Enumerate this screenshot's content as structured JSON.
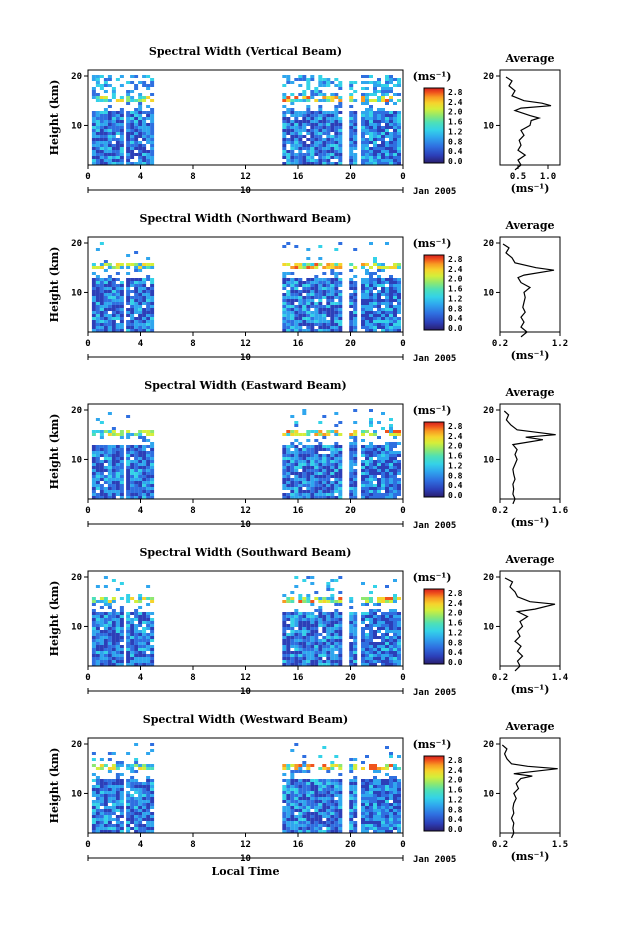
{
  "colors": {
    "axis": "#000000",
    "palette": [
      "#2a1e6e",
      "#2c3fb8",
      "#2f6fe0",
      "#2fa6ee",
      "#34d2e8",
      "#4de0b8",
      "#8ee870",
      "#d4ee3a",
      "#f6d42c",
      "#f89a22",
      "#f0541c",
      "#d61e1e"
    ]
  },
  "chart_data": [
    {
      "type": "heatmap",
      "title": "Spectral Width (Vertical Beam)",
      "ylabel": "Height (km)",
      "xlabel": "",
      "date_label": "Jan 2005",
      "day_label": "10",
      "x_ticks": [
        "0",
        "4",
        "8",
        "12",
        "16",
        "20",
        "0"
      ],
      "y_ticks": [
        "20",
        "10"
      ],
      "colorbar_unit": "(ms⁻¹)",
      "colorbar_ticks": [
        "2.8",
        "2.4",
        "2.0",
        "1.6",
        "1.2",
        "0.8",
        "0.4",
        "0.0"
      ],
      "profile": {
        "title": "Average",
        "xlabel": "(ms⁻¹)",
        "x_ticks": [
          "0.5",
          "1.0"
        ],
        "y_ticks": [
          "20",
          "10"
        ],
        "xlim": [
          0.2,
          1.2
        ],
        "points": [
          [
            0.45,
            1
          ],
          [
            0.55,
            2
          ],
          [
            0.5,
            3
          ],
          [
            0.62,
            4
          ],
          [
            0.5,
            5
          ],
          [
            0.55,
            6
          ],
          [
            0.52,
            7
          ],
          [
            0.6,
            8
          ],
          [
            0.55,
            9
          ],
          [
            0.7,
            10
          ],
          [
            0.72,
            11
          ],
          [
            0.85,
            11.5
          ],
          [
            0.7,
            12
          ],
          [
            0.45,
            13
          ],
          [
            0.55,
            13.5
          ],
          [
            1.05,
            14
          ],
          [
            0.9,
            14.5
          ],
          [
            0.6,
            15
          ],
          [
            0.4,
            16
          ],
          [
            0.45,
            17
          ],
          [
            0.35,
            18
          ],
          [
            0.4,
            19
          ],
          [
            0.3,
            19.8
          ]
        ]
      }
    },
    {
      "type": "heatmap",
      "title": "Spectral Width (Northward Beam)",
      "ylabel": "Height (km)",
      "xlabel": "",
      "date_label": "Jan 2005",
      "day_label": "10",
      "x_ticks": [
        "0",
        "4",
        "8",
        "12",
        "16",
        "20",
        "0"
      ],
      "y_ticks": [
        "20",
        "10"
      ],
      "colorbar_unit": "(ms⁻¹)",
      "colorbar_ticks": [
        "2.8",
        "2.4",
        "2.0",
        "1.6",
        "1.2",
        "0.8",
        "0.4",
        "0.0"
      ],
      "profile": {
        "title": "Average",
        "xlabel": "(ms⁻¹)",
        "x_ticks": [
          "0.2",
          "1.2"
        ],
        "y_ticks": [
          "20",
          "10"
        ],
        "xlim": [
          0.2,
          1.2
        ],
        "points": [
          [
            0.55,
            1
          ],
          [
            0.65,
            2
          ],
          [
            0.55,
            3
          ],
          [
            0.6,
            4
          ],
          [
            0.55,
            5
          ],
          [
            0.62,
            6
          ],
          [
            0.58,
            7
          ],
          [
            0.6,
            8
          ],
          [
            0.62,
            9
          ],
          [
            0.6,
            10
          ],
          [
            0.7,
            11
          ],
          [
            0.55,
            12
          ],
          [
            0.5,
            13
          ],
          [
            0.6,
            13.5
          ],
          [
            1.1,
            14.5
          ],
          [
            0.8,
            15
          ],
          [
            0.45,
            16
          ],
          [
            0.4,
            17
          ],
          [
            0.3,
            18
          ],
          [
            0.35,
            19
          ],
          [
            0.25,
            19.8
          ]
        ]
      }
    },
    {
      "type": "heatmap",
      "title": "Spectral Width (Eastward Beam)",
      "ylabel": "Height (km)",
      "xlabel": "",
      "date_label": "Jan 2005",
      "day_label": "10",
      "x_ticks": [
        "0",
        "4",
        "8",
        "12",
        "16",
        "20",
        "0"
      ],
      "y_ticks": [
        "20",
        "10"
      ],
      "colorbar_unit": "(ms⁻¹)",
      "colorbar_ticks": [
        "2.8",
        "2.4",
        "2.0",
        "1.6",
        "1.2",
        "0.8",
        "0.4",
        "0.0"
      ],
      "profile": {
        "title": "Average",
        "xlabel": "(ms⁻¹)",
        "x_ticks": [
          "0.2",
          "1.6"
        ],
        "y_ticks": [
          "20",
          "10"
        ],
        "xlim": [
          0.2,
          1.6
        ],
        "points": [
          [
            0.5,
            1
          ],
          [
            0.55,
            2
          ],
          [
            0.5,
            3
          ],
          [
            0.52,
            4
          ],
          [
            0.5,
            5
          ],
          [
            0.55,
            6
          ],
          [
            0.52,
            7
          ],
          [
            0.5,
            8
          ],
          [
            0.55,
            9
          ],
          [
            0.6,
            10
          ],
          [
            0.55,
            11
          ],
          [
            0.6,
            12
          ],
          [
            0.5,
            13
          ],
          [
            1.2,
            14
          ],
          [
            0.8,
            14.5
          ],
          [
            1.5,
            15
          ],
          [
            0.6,
            16
          ],
          [
            0.45,
            17
          ],
          [
            0.35,
            18
          ],
          [
            0.4,
            19
          ],
          [
            0.3,
            19.8
          ]
        ]
      }
    },
    {
      "type": "heatmap",
      "title": "Spectral Width (Southward Beam)",
      "ylabel": "Height (km)",
      "xlabel": "",
      "date_label": "Jan 2005",
      "day_label": "10",
      "x_ticks": [
        "0",
        "4",
        "8",
        "12",
        "16",
        "20",
        "0"
      ],
      "y_ticks": [
        "20",
        "10"
      ],
      "colorbar_unit": "(ms⁻¹)",
      "colorbar_ticks": [
        "2.8",
        "2.4",
        "2.0",
        "1.6",
        "1.2",
        "0.8",
        "0.4",
        "0.0"
      ],
      "profile": {
        "title": "Average",
        "xlabel": "(ms⁻¹)",
        "x_ticks": [
          "0.2",
          "1.4"
        ],
        "y_ticks": [
          "20",
          "10"
        ],
        "xlim": [
          0.2,
          1.4
        ],
        "points": [
          [
            0.5,
            1
          ],
          [
            0.6,
            2
          ],
          [
            0.55,
            3
          ],
          [
            0.65,
            4
          ],
          [
            0.55,
            5
          ],
          [
            0.62,
            6
          ],
          [
            0.5,
            7
          ],
          [
            0.6,
            8
          ],
          [
            0.55,
            9
          ],
          [
            0.65,
            10
          ],
          [
            0.6,
            11
          ],
          [
            0.75,
            12
          ],
          [
            0.55,
            13
          ],
          [
            0.9,
            13.5
          ],
          [
            1.3,
            14.5
          ],
          [
            0.8,
            15
          ],
          [
            0.55,
            16
          ],
          [
            0.5,
            17
          ],
          [
            0.4,
            18
          ],
          [
            0.45,
            19
          ],
          [
            0.3,
            19.8
          ]
        ]
      }
    },
    {
      "type": "heatmap",
      "title": "Spectral Width (Westward Beam)",
      "ylabel": "Height (km)",
      "xlabel": "Local Time",
      "date_label": "Jan 2005",
      "day_label": "10",
      "x_ticks": [
        "0",
        "4",
        "8",
        "12",
        "16",
        "20",
        "0"
      ],
      "y_ticks": [
        "20",
        "10"
      ],
      "colorbar_unit": "(ms⁻¹)",
      "colorbar_ticks": [
        "2.8",
        "2.4",
        "2.0",
        "1.6",
        "1.2",
        "0.8",
        "0.4",
        "0.0"
      ],
      "profile": {
        "title": "Average",
        "xlabel": "(ms⁻¹)",
        "x_ticks": [
          "0.2",
          "1.5"
        ],
        "y_ticks": [
          "20",
          "10"
        ],
        "xlim": [
          0.2,
          1.5
        ],
        "points": [
          [
            0.45,
            1
          ],
          [
            0.5,
            2
          ],
          [
            0.48,
            3
          ],
          [
            0.5,
            4
          ],
          [
            0.45,
            5
          ],
          [
            0.5,
            6
          ],
          [
            0.48,
            7
          ],
          [
            0.5,
            8
          ],
          [
            0.55,
            9
          ],
          [
            0.5,
            10
          ],
          [
            0.6,
            11
          ],
          [
            0.55,
            12
          ],
          [
            0.65,
            13
          ],
          [
            0.9,
            13.5
          ],
          [
            0.5,
            14
          ],
          [
            1.45,
            15
          ],
          [
            0.8,
            15.5
          ],
          [
            0.45,
            16
          ],
          [
            0.35,
            17
          ],
          [
            0.3,
            18
          ],
          [
            0.35,
            19
          ],
          [
            0.25,
            19.8
          ]
        ]
      }
    }
  ]
}
